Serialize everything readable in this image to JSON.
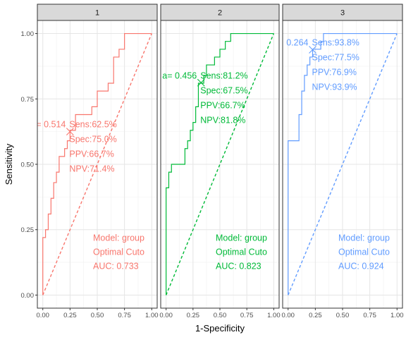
{
  "chart_data": {
    "type": "line",
    "xlabel": "1-Specificity",
    "ylabel": "Sensitivity",
    "xlim": [
      0,
      1
    ],
    "ylim": [
      0,
      1
    ],
    "x_ticks": [
      "0.00",
      "0.25",
      "0.50",
      "0.75",
      "1.00"
    ],
    "y_ticks": [
      "0.00",
      "0.25",
      "0.50",
      "0.75",
      "1.00"
    ],
    "grid": true,
    "panels": [
      {
        "strip": "1",
        "color": "#F8766D",
        "roc": [
          [
            0,
            0
          ],
          [
            0,
            0.22
          ],
          [
            0.025,
            0.22
          ],
          [
            0.025,
            0.25
          ],
          [
            0.05,
            0.25
          ],
          [
            0.05,
            0.31
          ],
          [
            0.075,
            0.31
          ],
          [
            0.075,
            0.37
          ],
          [
            0.1,
            0.37
          ],
          [
            0.1,
            0.43
          ],
          [
            0.125,
            0.43
          ],
          [
            0.125,
            0.47
          ],
          [
            0.15,
            0.47
          ],
          [
            0.15,
            0.53
          ],
          [
            0.2,
            0.53
          ],
          [
            0.2,
            0.56
          ],
          [
            0.225,
            0.56
          ],
          [
            0.225,
            0.59
          ],
          [
            0.25,
            0.59
          ],
          [
            0.25,
            0.63
          ],
          [
            0.3,
            0.63
          ],
          [
            0.3,
            0.69
          ],
          [
            0.45,
            0.69
          ],
          [
            0.45,
            0.72
          ],
          [
            0.5,
            0.72
          ],
          [
            0.5,
            0.78
          ],
          [
            0.6,
            0.78
          ],
          [
            0.6,
            0.81
          ],
          [
            0.65,
            0.81
          ],
          [
            0.65,
            0.91
          ],
          [
            0.7,
            0.91
          ],
          [
            0.7,
            0.94
          ],
          [
            0.75,
            0.94
          ],
          [
            0.75,
            1.0
          ],
          [
            1.0,
            1.0
          ]
        ],
        "optimal_point": [
          0.25,
          0.625
        ],
        "cutoff_text": "= 0.514",
        "metrics": [
          "Sens:62.5%",
          "Spec:75.0%",
          "PPV:66.7%",
          "NPV:71.4%"
        ],
        "model_lines": [
          "Model: group",
          "Optimal Cuto",
          " AUC:  0.733"
        ]
      },
      {
        "strip": "2",
        "color": "#00BA38",
        "roc": [
          [
            0,
            0
          ],
          [
            0,
            0.41
          ],
          [
            0.025,
            0.41
          ],
          [
            0.025,
            0.47
          ],
          [
            0.05,
            0.47
          ],
          [
            0.05,
            0.5
          ],
          [
            0.175,
            0.5
          ],
          [
            0.175,
            0.56
          ],
          [
            0.2,
            0.56
          ],
          [
            0.2,
            0.59
          ],
          [
            0.225,
            0.59
          ],
          [
            0.225,
            0.63
          ],
          [
            0.25,
            0.63
          ],
          [
            0.25,
            0.66
          ],
          [
            0.275,
            0.66
          ],
          [
            0.275,
            0.72
          ],
          [
            0.3,
            0.72
          ],
          [
            0.3,
            0.81
          ],
          [
            0.35,
            0.81
          ],
          [
            0.35,
            0.84
          ],
          [
            0.375,
            0.84
          ],
          [
            0.375,
            0.88
          ],
          [
            0.45,
            0.88
          ],
          [
            0.45,
            0.91
          ],
          [
            0.5,
            0.91
          ],
          [
            0.5,
            0.94
          ],
          [
            0.55,
            0.94
          ],
          [
            0.55,
            0.97
          ],
          [
            0.6,
            0.97
          ],
          [
            0.6,
            1.0
          ],
          [
            0.675,
            1.0
          ],
          [
            1.0,
            1.0
          ]
        ],
        "optimal_point": [
          0.325,
          0.812
        ],
        "cutoff_text": "a= 0.456",
        "metrics": [
          "Sens:81.2%",
          "Spec:67.5%",
          "PPV:66.7%",
          "NPV:81.8%"
        ],
        "model_lines": [
          "Model: group",
          "Optimal Cuto",
          " AUC:  0.823"
        ]
      },
      {
        "strip": "3",
        "color": "#619CFF",
        "roc": [
          [
            0,
            0
          ],
          [
            0,
            0.59
          ],
          [
            0.025,
            0.59
          ],
          [
            0.025,
            0.59
          ],
          [
            0.1,
            0.59
          ],
          [
            0.1,
            0.69
          ],
          [
            0.125,
            0.69
          ],
          [
            0.125,
            0.78
          ],
          [
            0.15,
            0.78
          ],
          [
            0.15,
            0.84
          ],
          [
            0.175,
            0.84
          ],
          [
            0.175,
            0.88
          ],
          [
            0.2,
            0.88
          ],
          [
            0.2,
            0.91
          ],
          [
            0.225,
            0.91
          ],
          [
            0.225,
            0.94
          ],
          [
            0.3,
            0.94
          ],
          [
            0.3,
            0.97
          ],
          [
            0.325,
            0.97
          ],
          [
            0.325,
            1.0
          ],
          [
            1.0,
            1.0
          ]
        ],
        "optimal_point": [
          0.225,
          0.938
        ],
        "cutoff_text": "0.264",
        "metrics": [
          "Sens:93.8%",
          "Spec:77.5%",
          "PPV:76.9%",
          "NPV:93.9%"
        ],
        "model_lines": [
          "Model: group",
          "Optimal Cuto",
          " AUC:  0.924"
        ]
      }
    ]
  }
}
